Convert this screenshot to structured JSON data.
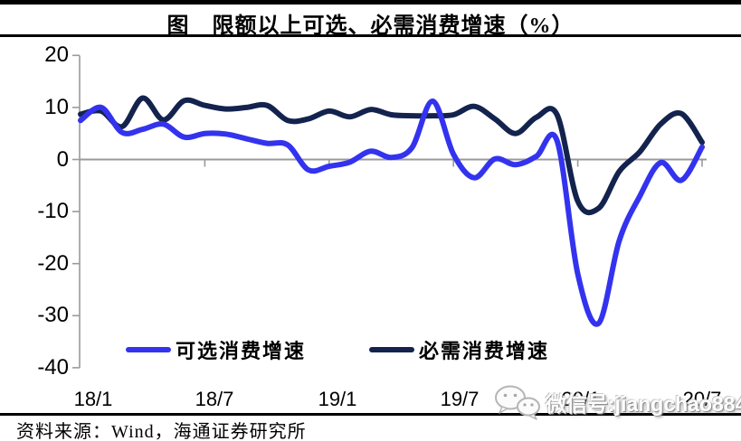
{
  "page": {
    "title": "图　限额以上可选、必需消费增速（%）",
    "source": "资料来源：Wind，海通证券研究所",
    "watermark": "微信号:jiangchao8848"
  },
  "colors": {
    "optional_line": "#3333ef",
    "essential_line": "#13234e",
    "axis_gray": "#9a9a9a",
    "text_black": "#000000",
    "watermark_white": "#ffffff"
  },
  "chart_data": {
    "type": "line",
    "title": "限额以上可选、必需消费增速（%）",
    "xlabel": "",
    "ylabel": "",
    "ylim": [
      -40,
      20
    ],
    "grid": "zero-axis-only",
    "legend_position": "inside-bottom-left",
    "y_ticks": [
      20,
      10,
      0,
      -10,
      -20,
      -30,
      -40
    ],
    "y_tick_labels": [
      "20",
      "10",
      "0",
      "-10",
      "-20",
      "-30",
      "-40"
    ],
    "x_tick_labels": [
      "18/1",
      "18/7",
      "19/1",
      "19/7",
      "20/1",
      "20/7"
    ],
    "x": [
      "18/1",
      "18/2",
      "18/3",
      "18/4",
      "18/5",
      "18/6",
      "18/7",
      "18/8",
      "18/9",
      "18/10",
      "18/11",
      "18/12",
      "19/1",
      "19/2",
      "19/3",
      "19/4",
      "19/5",
      "19/6",
      "19/7",
      "19/8",
      "19/9",
      "19/10",
      "19/11",
      "19/12",
      "20/1",
      "20/2",
      "20/3",
      "20/4",
      "20/5",
      "20/6",
      "20/7"
    ],
    "series": [
      {
        "name": "可选消费增速",
        "color": "#3333ef",
        "values": [
          7.5,
          10.0,
          5.2,
          5.8,
          6.8,
          4.3,
          5.0,
          4.9,
          4.0,
          3.1,
          2.8,
          -2.0,
          -1.3,
          -0.5,
          1.6,
          0.4,
          2.3,
          11.2,
          1.0,
          -3.5,
          0.1,
          -1.0,
          0.6,
          3.6,
          -22.0,
          -31.5,
          -15.6,
          -7.0,
          -0.6,
          -4.0,
          2.4
        ]
      },
      {
        "name": "必需消费增速",
        "color": "#13234e",
        "values": [
          8.7,
          9.3,
          6.3,
          11.8,
          7.6,
          11.3,
          10.4,
          9.7,
          10.0,
          10.4,
          7.5,
          7.8,
          9.3,
          8.2,
          9.6,
          8.6,
          8.4,
          8.4,
          8.6,
          10.2,
          7.8,
          5.0,
          8.1,
          8.6,
          -8.0,
          -9.4,
          -2.3,
          1.5,
          6.8,
          8.8,
          3.3
        ]
      }
    ]
  }
}
